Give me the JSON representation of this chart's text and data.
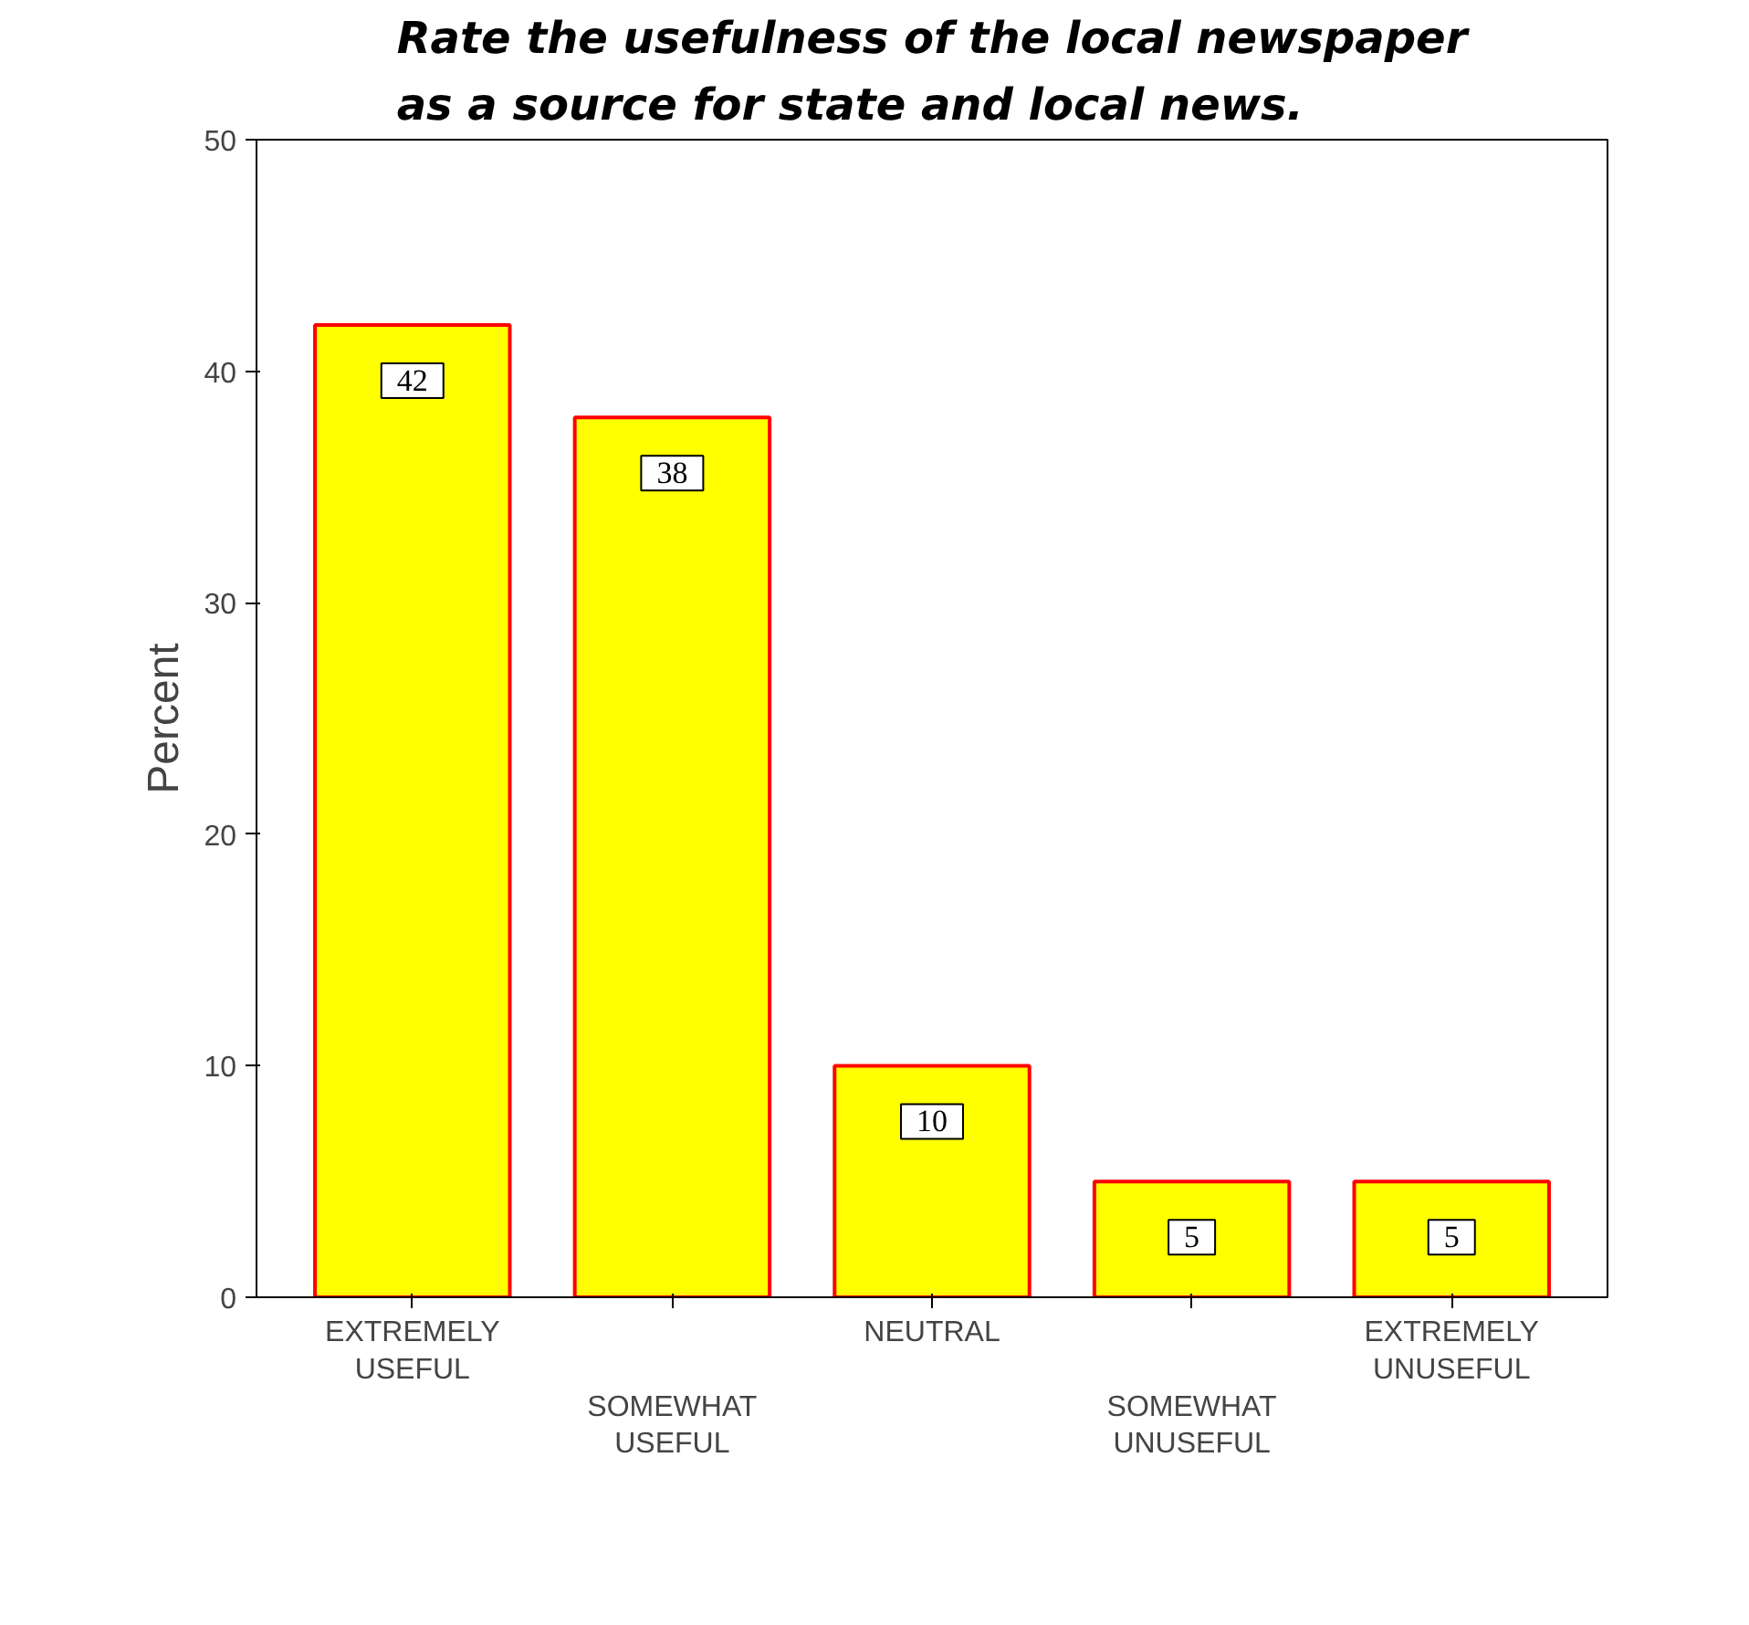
{
  "chart_data": {
    "type": "bar",
    "title": "Rate the usefulness of the local newspaper as a source for state and local news.",
    "categories": [
      "EXTREMELY USEFUL",
      "SOMEWHAT USEFUL",
      "NEUTRAL",
      "SOMEWHAT UNUSEFUL",
      "EXTREMELY UNUSEFUL"
    ],
    "values": [
      42,
      38,
      10,
      5,
      5
    ],
    "color": "#ffff00",
    "ylabel": "Percent",
    "ylim": [
      0,
      50
    ],
    "yticks": [
      0,
      10,
      20,
      30,
      40,
      50
    ],
    "data_labels": true,
    "grid": false
  }
}
